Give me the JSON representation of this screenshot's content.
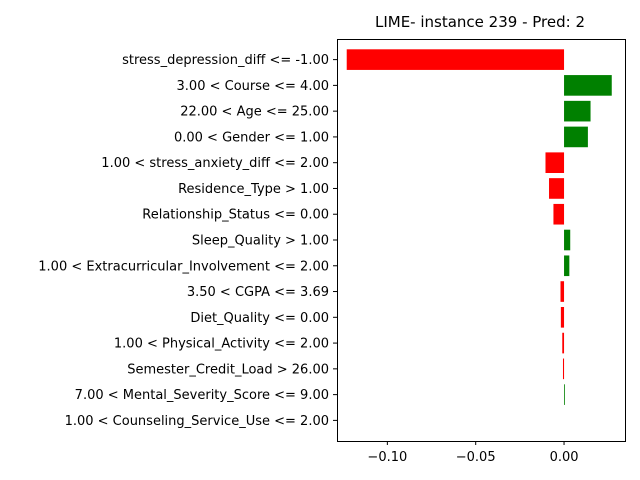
{
  "chart_data": {
    "type": "bar",
    "orientation": "horizontal",
    "title": "LIME- instance 239 - Pred: 2",
    "xlabel": "",
    "ylabel": "",
    "xlim": [
      -0.1285,
      0.0345
    ],
    "xticks": [
      -0.1,
      -0.05,
      0.0
    ],
    "xtick_labels": [
      "−0.10",
      "−0.05",
      "0.00"
    ],
    "grid": false,
    "positive_color": "#008000",
    "negative_color": "#ff0000",
    "categories": [
      "stress_depression_diff <= -1.00",
      "3.00 < Course <= 4.00",
      "22.00 < Age <= 25.00",
      "0.00 < Gender <= 1.00",
      "1.00 < stress_anxiety_diff <= 2.00",
      "Residence_Type > 1.00",
      "Relationship_Status <= 0.00",
      "Sleep_Quality > 1.00",
      "1.00 < Extracurricular_Involvement <= 2.00",
      "3.50 < CGPA <= 3.69",
      "Diet_Quality <= 0.00",
      "1.00 < Physical_Activity <= 2.00",
      "Semester_Credit_Load > 26.00",
      "7.00 < Mental_Severity_Score <= 9.00",
      "1.00 < Counseling_Service_Use <= 2.00"
    ],
    "values": [
      -0.123,
      0.027,
      0.015,
      0.0135,
      -0.0105,
      -0.0085,
      -0.006,
      0.0035,
      0.003,
      -0.002,
      -0.0018,
      -0.001,
      -0.0006,
      0.0004,
      0.0
    ]
  }
}
